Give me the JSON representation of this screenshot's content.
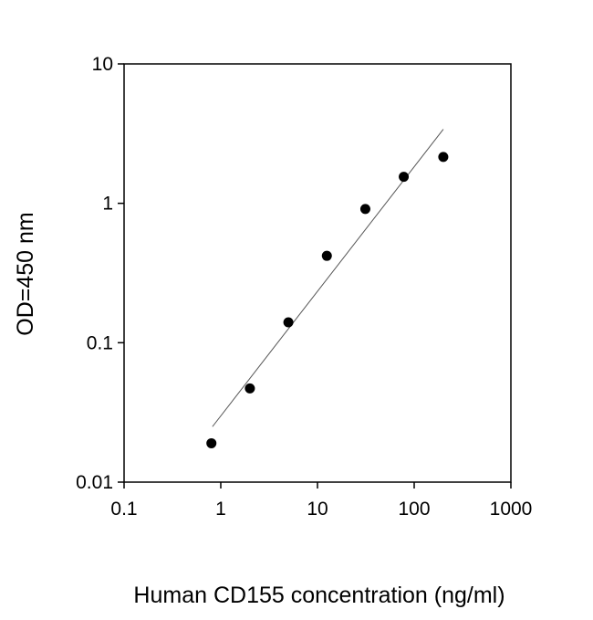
{
  "chart_data": {
    "type": "scatter",
    "x_label": "Human CD155 concentration (ng/ml)",
    "y_label": "OD=450 nm",
    "x_scale": "log",
    "y_scale": "log",
    "xlim": [
      0.1,
      1000
    ],
    "ylim": [
      0.01,
      10
    ],
    "xticks": [
      0.1,
      1,
      10,
      100,
      1000
    ],
    "yticks": [
      0.01,
      0.1,
      1,
      10
    ],
    "color": "#000000",
    "x": [
      0.8,
      2,
      5,
      12.5,
      31.25,
      78,
      200
    ],
    "values": [
      0.019,
      0.047,
      0.14,
      0.42,
      0.91,
      1.55,
      2.15
    ],
    "fit": {
      "x": [
        0.82,
        200
      ],
      "y": [
        0.025,
        3.4
      ]
    }
  }
}
